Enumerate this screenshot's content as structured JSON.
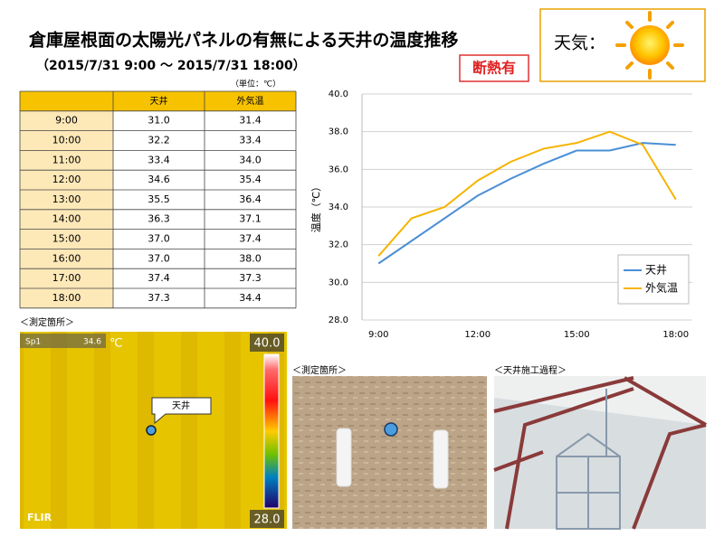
{
  "header": {
    "title": "倉庫屋根面の太陽光パネルの有無による天井の温度推移",
    "subtitle": "（2015/7/31 9:00 ～ 2015/7/31 18:00）",
    "badge": "断熱有",
    "weather_label": "天気："
  },
  "table": {
    "unit": "（単位：℃）",
    "columns": [
      "天井",
      "外気温"
    ],
    "rows": [
      [
        "9:00",
        "31.0",
        "31.4"
      ],
      [
        "10:00",
        "32.2",
        "33.4"
      ],
      [
        "11:00",
        "33.4",
        "34.0"
      ],
      [
        "12:00",
        "34.6",
        "35.4"
      ],
      [
        "13:00",
        "35.5",
        "36.4"
      ],
      [
        "14:00",
        "36.3",
        "37.1"
      ],
      [
        "15:00",
        "37.0",
        "37.4"
      ],
      [
        "16:00",
        "37.0",
        "38.0"
      ],
      [
        "17:00",
        "37.4",
        "37.3"
      ],
      [
        "18:00",
        "37.3",
        "34.4"
      ]
    ]
  },
  "chart_data": {
    "type": "line",
    "y_label": "温度（℃）",
    "categories": [
      "9:00",
      null,
      null,
      "12:00",
      null,
      null,
      "15:00",
      null,
      null,
      "18:00"
    ],
    "series": [
      {
        "name": "天井",
        "color": "#4a8fd6",
        "values": [
          31.0,
          32.2,
          33.4,
          34.6,
          35.5,
          36.3,
          37.0,
          37.0,
          37.4,
          37.3
        ]
      },
      {
        "name": "外気温",
        "color": "#f5b400",
        "values": [
          31.4,
          33.4,
          34.0,
          35.4,
          36.4,
          37.1,
          37.4,
          38.0,
          37.3,
          34.4
        ]
      }
    ],
    "ylim": [
      28,
      40
    ],
    "yticks": [
      {
        "value": 28,
        "label": "28.0"
      },
      {
        "value": 30,
        "label": "30.0"
      },
      {
        "value": 32,
        "label": "32.0"
      },
      {
        "value": 34,
        "label": "34.0"
      },
      {
        "value": 36,
        "label": "36.0"
      },
      {
        "value": 38,
        "label": "38.0"
      },
      {
        "value": 40,
        "label": "40.0"
      }
    ],
    "grid": true,
    "legend": "lower right"
  },
  "thermal": {
    "caption": "＜測定箇所＞",
    "spot": "Sp1",
    "spot_value": "34.6",
    "unit": "℃",
    "scale_max": "40.0",
    "scale_min": "28.0",
    "callout": "天井",
    "brand": "FLIR"
  },
  "photos": [
    {
      "caption": "＜測定箇所＞"
    },
    {
      "caption": "＜天井施工過程＞"
    }
  ]
}
